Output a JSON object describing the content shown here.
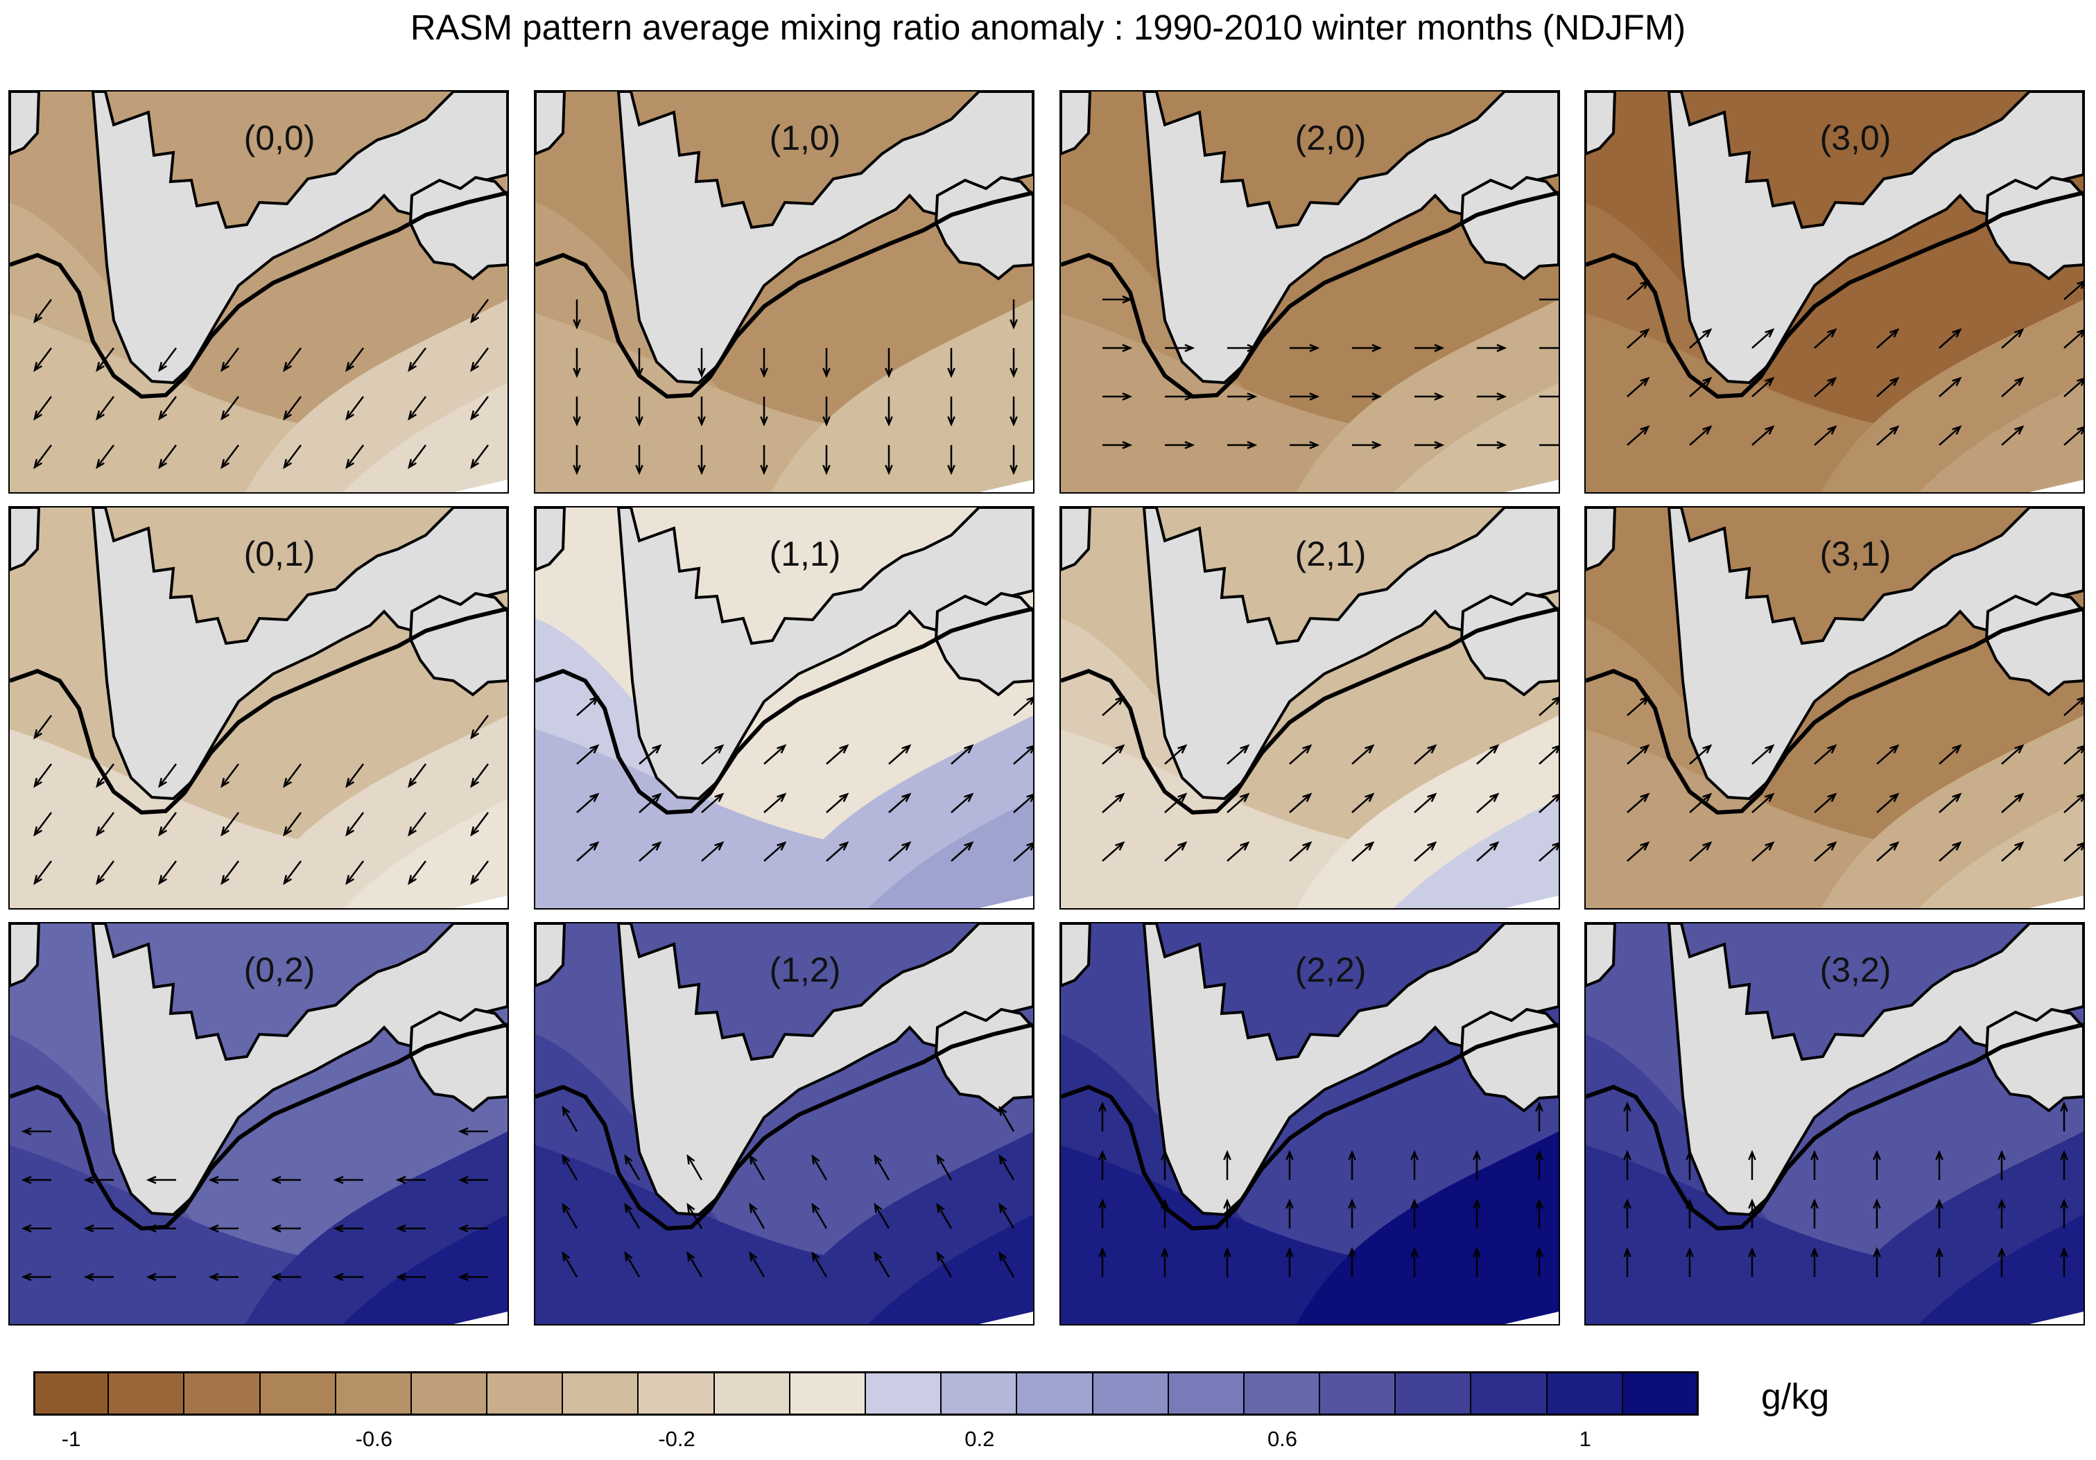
{
  "title": "RASM pattern average mixing ratio anomaly  : 1990-2010 winter months (NDJFM)",
  "units": "g/kg",
  "chart_data": {
    "type": "heatmap",
    "title": "RASM pattern average mixing ratio anomaly  : 1990-2010 winter months (NDJFM)",
    "colorbar": {
      "units": "g/kg",
      "levels": [
        -1.1,
        -1.0,
        -0.9,
        -0.8,
        -0.7,
        -0.6,
        -0.5,
        -0.4,
        -0.3,
        -0.2,
        -0.1,
        0.0,
        0.1,
        0.2,
        0.3,
        0.4,
        0.5,
        0.6,
        0.7,
        0.8,
        0.9,
        1.0,
        1.1
      ],
      "tick_labels": [
        "-1",
        "-0.6",
        "-0.2",
        "0.2",
        "0.6",
        "1"
      ],
      "tick_values": [
        -1.0,
        -0.6,
        -0.2,
        0.2,
        0.6,
        1.0
      ],
      "colors": [
        "#8f5a2b",
        "#99673a",
        "#a37549",
        "#ad8358",
        "#b69168",
        "#bf9f79",
        "#c8ae8b",
        "#d2bd9f",
        "#ddccb5",
        "#e4d8c8",
        "#ece3d7",
        "#cbcde4",
        "#b4b7d9",
        "#9fa3cf",
        "#8c8fc4",
        "#797bb8",
        "#6668ac",
        "#5355a1",
        "#3f4297",
        "#2c2e8c",
        "#1a1d83",
        "#0a0d7a"
      ]
    },
    "panels": [
      {
        "label": "(0,0)",
        "dominant_anomaly": -0.35,
        "wind_direction": "southwest"
      },
      {
        "label": "(1,0)",
        "dominant_anomaly": -0.45,
        "wind_direction": "south"
      },
      {
        "label": "(2,0)",
        "dominant_anomaly": -0.55,
        "wind_direction": "east"
      },
      {
        "label": "(3,0)",
        "dominant_anomaly": -0.75,
        "wind_direction": "northeast"
      },
      {
        "label": "(0,1)",
        "dominant_anomaly": -0.2,
        "wind_direction": "southwest"
      },
      {
        "label": "(1,1)",
        "dominant_anomaly": 0.1,
        "wind_direction": "northeast"
      },
      {
        "label": "(2,1)",
        "dominant_anomaly": -0.15,
        "wind_direction": "northeast"
      },
      {
        "label": "(3,1)",
        "dominant_anomaly": -0.55,
        "wind_direction": "northeast"
      },
      {
        "label": "(0,2)",
        "dominant_anomaly": 0.75,
        "wind_direction": "west"
      },
      {
        "label": "(1,2)",
        "dominant_anomaly": 0.8,
        "wind_direction": "northwest"
      },
      {
        "label": "(2,2)",
        "dominant_anomaly": 0.95,
        "wind_direction": "north"
      },
      {
        "label": "(3,2)",
        "dominant_anomaly": 0.8,
        "wind_direction": "north"
      }
    ]
  }
}
